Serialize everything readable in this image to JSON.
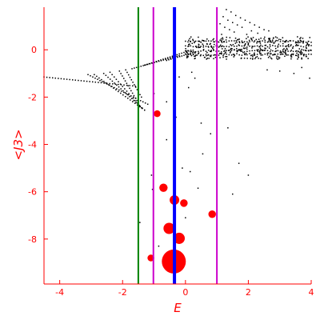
{
  "chart_data": {
    "type": "scatter",
    "xlabel": "E",
    "ylabel": "<J3>",
    "xlim": [
      -4.5,
      4.0
    ],
    "ylim": [
      -9.9,
      1.8
    ],
    "xticks": [
      -4,
      -2,
      0,
      2,
      4
    ],
    "yticks": [
      -8,
      -6,
      -4,
      -2,
      0
    ],
    "grid": false,
    "colors": {
      "axes": "#ff0000",
      "points": "#000000",
      "highlight": "#ff0000",
      "green_line": "#008000",
      "blue_line": "#0000ff",
      "magenta_line": "#cc00cc"
    },
    "vertical_lines": [
      {
        "x": -1.5,
        "color": "#008000"
      },
      {
        "x": -1.02,
        "color": "#cc00cc"
      },
      {
        "x": -0.35,
        "color": "#0000ff"
      },
      {
        "x": 1.0,
        "color": "#cc00cc"
      }
    ],
    "highlight_points": [
      {
        "x": -0.37,
        "y": -8.95,
        "weight": 1.0
      },
      {
        "x": -0.2,
        "y": -7.97,
        "weight": 0.22
      },
      {
        "x": -0.52,
        "y": -7.55,
        "weight": 0.22
      },
      {
        "x": -0.35,
        "y": -6.35,
        "weight": 0.16
      },
      {
        "x": -0.7,
        "y": -5.83,
        "weight": 0.12
      },
      {
        "x": -0.05,
        "y": -6.48,
        "weight": 0.1
      },
      {
        "x": 0.85,
        "y": -6.95,
        "weight": 0.1
      },
      {
        "x": -1.1,
        "y": -8.8,
        "weight": 0.08
      },
      {
        "x": -0.9,
        "y": -2.7,
        "weight": 0.08
      }
    ],
    "band_branches": [
      {
        "x_start": -4.5,
        "x_end": -1.5,
        "y_start": -1.15,
        "y_end": -1.55,
        "n": 34
      },
      {
        "x_start": -3.1,
        "x_end": -1.2,
        "y_start": -1.05,
        "y_end": -2.3,
        "n": 26
      },
      {
        "x_start": -2.9,
        "x_end": -1.3,
        "y_start": -1.05,
        "y_end": -2.55,
        "n": 22
      },
      {
        "x_start": -2.6,
        "x_end": -1.3,
        "y_start": -1.0,
        "y_end": -2.55,
        "n": 20
      },
      {
        "x_start": -2.4,
        "x_end": -1.4,
        "y_start": -0.95,
        "y_end": -2.45,
        "n": 16
      },
      {
        "x_start": -2.1,
        "x_end": -1.5,
        "y_start": -0.9,
        "y_end": -2.25,
        "n": 14
      },
      {
        "x_start": -1.9,
        "x_end": -1.4,
        "y_start": -0.85,
        "y_end": -2.0,
        "n": 12
      },
      {
        "x_start": -1.7,
        "x_end": -0.2,
        "y_start": -0.8,
        "y_end": -0.25,
        "n": 22
      },
      {
        "x_start": -1.3,
        "x_end": 0.1,
        "y_start": -0.65,
        "y_end": -0.05,
        "n": 20
      },
      {
        "x_start": -0.6,
        "x_end": 0.3,
        "y_start": -0.45,
        "y_end": -0.1,
        "n": 14
      }
    ],
    "right_cloud": {
      "x_range": [
        0.0,
        4.0
      ],
      "y_range": [
        -0.4,
        0.55
      ],
      "n": 340
    },
    "right_rows": [
      {
        "x_start": 0.0,
        "x_end": 4.0,
        "y": 0.35,
        "n": 50
      },
      {
        "x_start": 0.0,
        "x_end": 4.0,
        "y": 0.15,
        "n": 50
      },
      {
        "x_start": 0.0,
        "x_end": 4.0,
        "y": -0.05,
        "n": 50
      },
      {
        "x_start": 0.0,
        "x_end": 4.0,
        "y": -0.2,
        "n": 50
      }
    ],
    "peak_points": [
      {
        "x": 1.3,
        "y": 1.7
      },
      {
        "x": 1.45,
        "y": 1.6
      },
      {
        "x": 1.6,
        "y": 1.45
      },
      {
        "x": 1.75,
        "y": 1.35
      },
      {
        "x": 1.9,
        "y": 1.25
      },
      {
        "x": 2.05,
        "y": 1.15
      },
      {
        "x": 2.2,
        "y": 1.05
      },
      {
        "x": 2.35,
        "y": 0.95
      },
      {
        "x": 2.5,
        "y": 0.85
      },
      {
        "x": 2.65,
        "y": 0.8
      },
      {
        "x": 1.2,
        "y": 1.4
      },
      {
        "x": 1.35,
        "y": 1.25
      },
      {
        "x": 1.5,
        "y": 1.15
      },
      {
        "x": 1.65,
        "y": 1.05
      },
      {
        "x": 1.8,
        "y": 0.95
      },
      {
        "x": 1.1,
        "y": 1.1
      },
      {
        "x": 1.25,
        "y": 0.95
      },
      {
        "x": 1.4,
        "y": 0.85
      },
      {
        "x": 1.55,
        "y": 0.75
      },
      {
        "x": 1.0,
        "y": 0.75
      },
      {
        "x": 1.15,
        "y": 0.65
      },
      {
        "x": 2.1,
        "y": 0.8
      },
      {
        "x": 2.3,
        "y": 0.7
      },
      {
        "x": 1.95,
        "y": 0.65
      }
    ],
    "scattered_points": [
      {
        "x": -1.5,
        "y": -4.4
      },
      {
        "x": -1.08,
        "y": -5.3
      },
      {
        "x": -0.6,
        "y": -3.8
      },
      {
        "x": -0.1,
        "y": -5.0
      },
      {
        "x": 0.15,
        "y": -5.15
      },
      {
        "x": 0.55,
        "y": -4.4
      },
      {
        "x": 0.8,
        "y": -3.55
      },
      {
        "x": 0.5,
        "y": -3.1
      },
      {
        "x": 1.35,
        "y": -3.3
      },
      {
        "x": 1.7,
        "y": -4.8
      },
      {
        "x": 2.0,
        "y": -5.3
      },
      {
        "x": 0.4,
        "y": -5.85
      },
      {
        "x": 1.5,
        "y": -6.1
      },
      {
        "x": -1.45,
        "y": -7.3
      },
      {
        "x": -1.05,
        "y": -5.9
      },
      {
        "x": -0.85,
        "y": -8.3
      },
      {
        "x": 0.0,
        "y": -7.1
      },
      {
        "x": -0.3,
        "y": -2.85
      },
      {
        "x": 0.3,
        "y": -1.2
      },
      {
        "x": -0.2,
        "y": -1.15
      },
      {
        "x": 0.2,
        "y": -0.95
      },
      {
        "x": 3.0,
        "y": -0.9
      },
      {
        "x": 3.45,
        "y": -1.0
      },
      {
        "x": 3.95,
        "y": -1.2
      },
      {
        "x": 2.6,
        "y": -0.85
      },
      {
        "x": 3.7,
        "y": -0.75
      },
      {
        "x": -0.6,
        "y": -2.2
      },
      {
        "x": 0.1,
        "y": -1.6
      },
      {
        "x": -1.0,
        "y": -1.85
      }
    ]
  }
}
